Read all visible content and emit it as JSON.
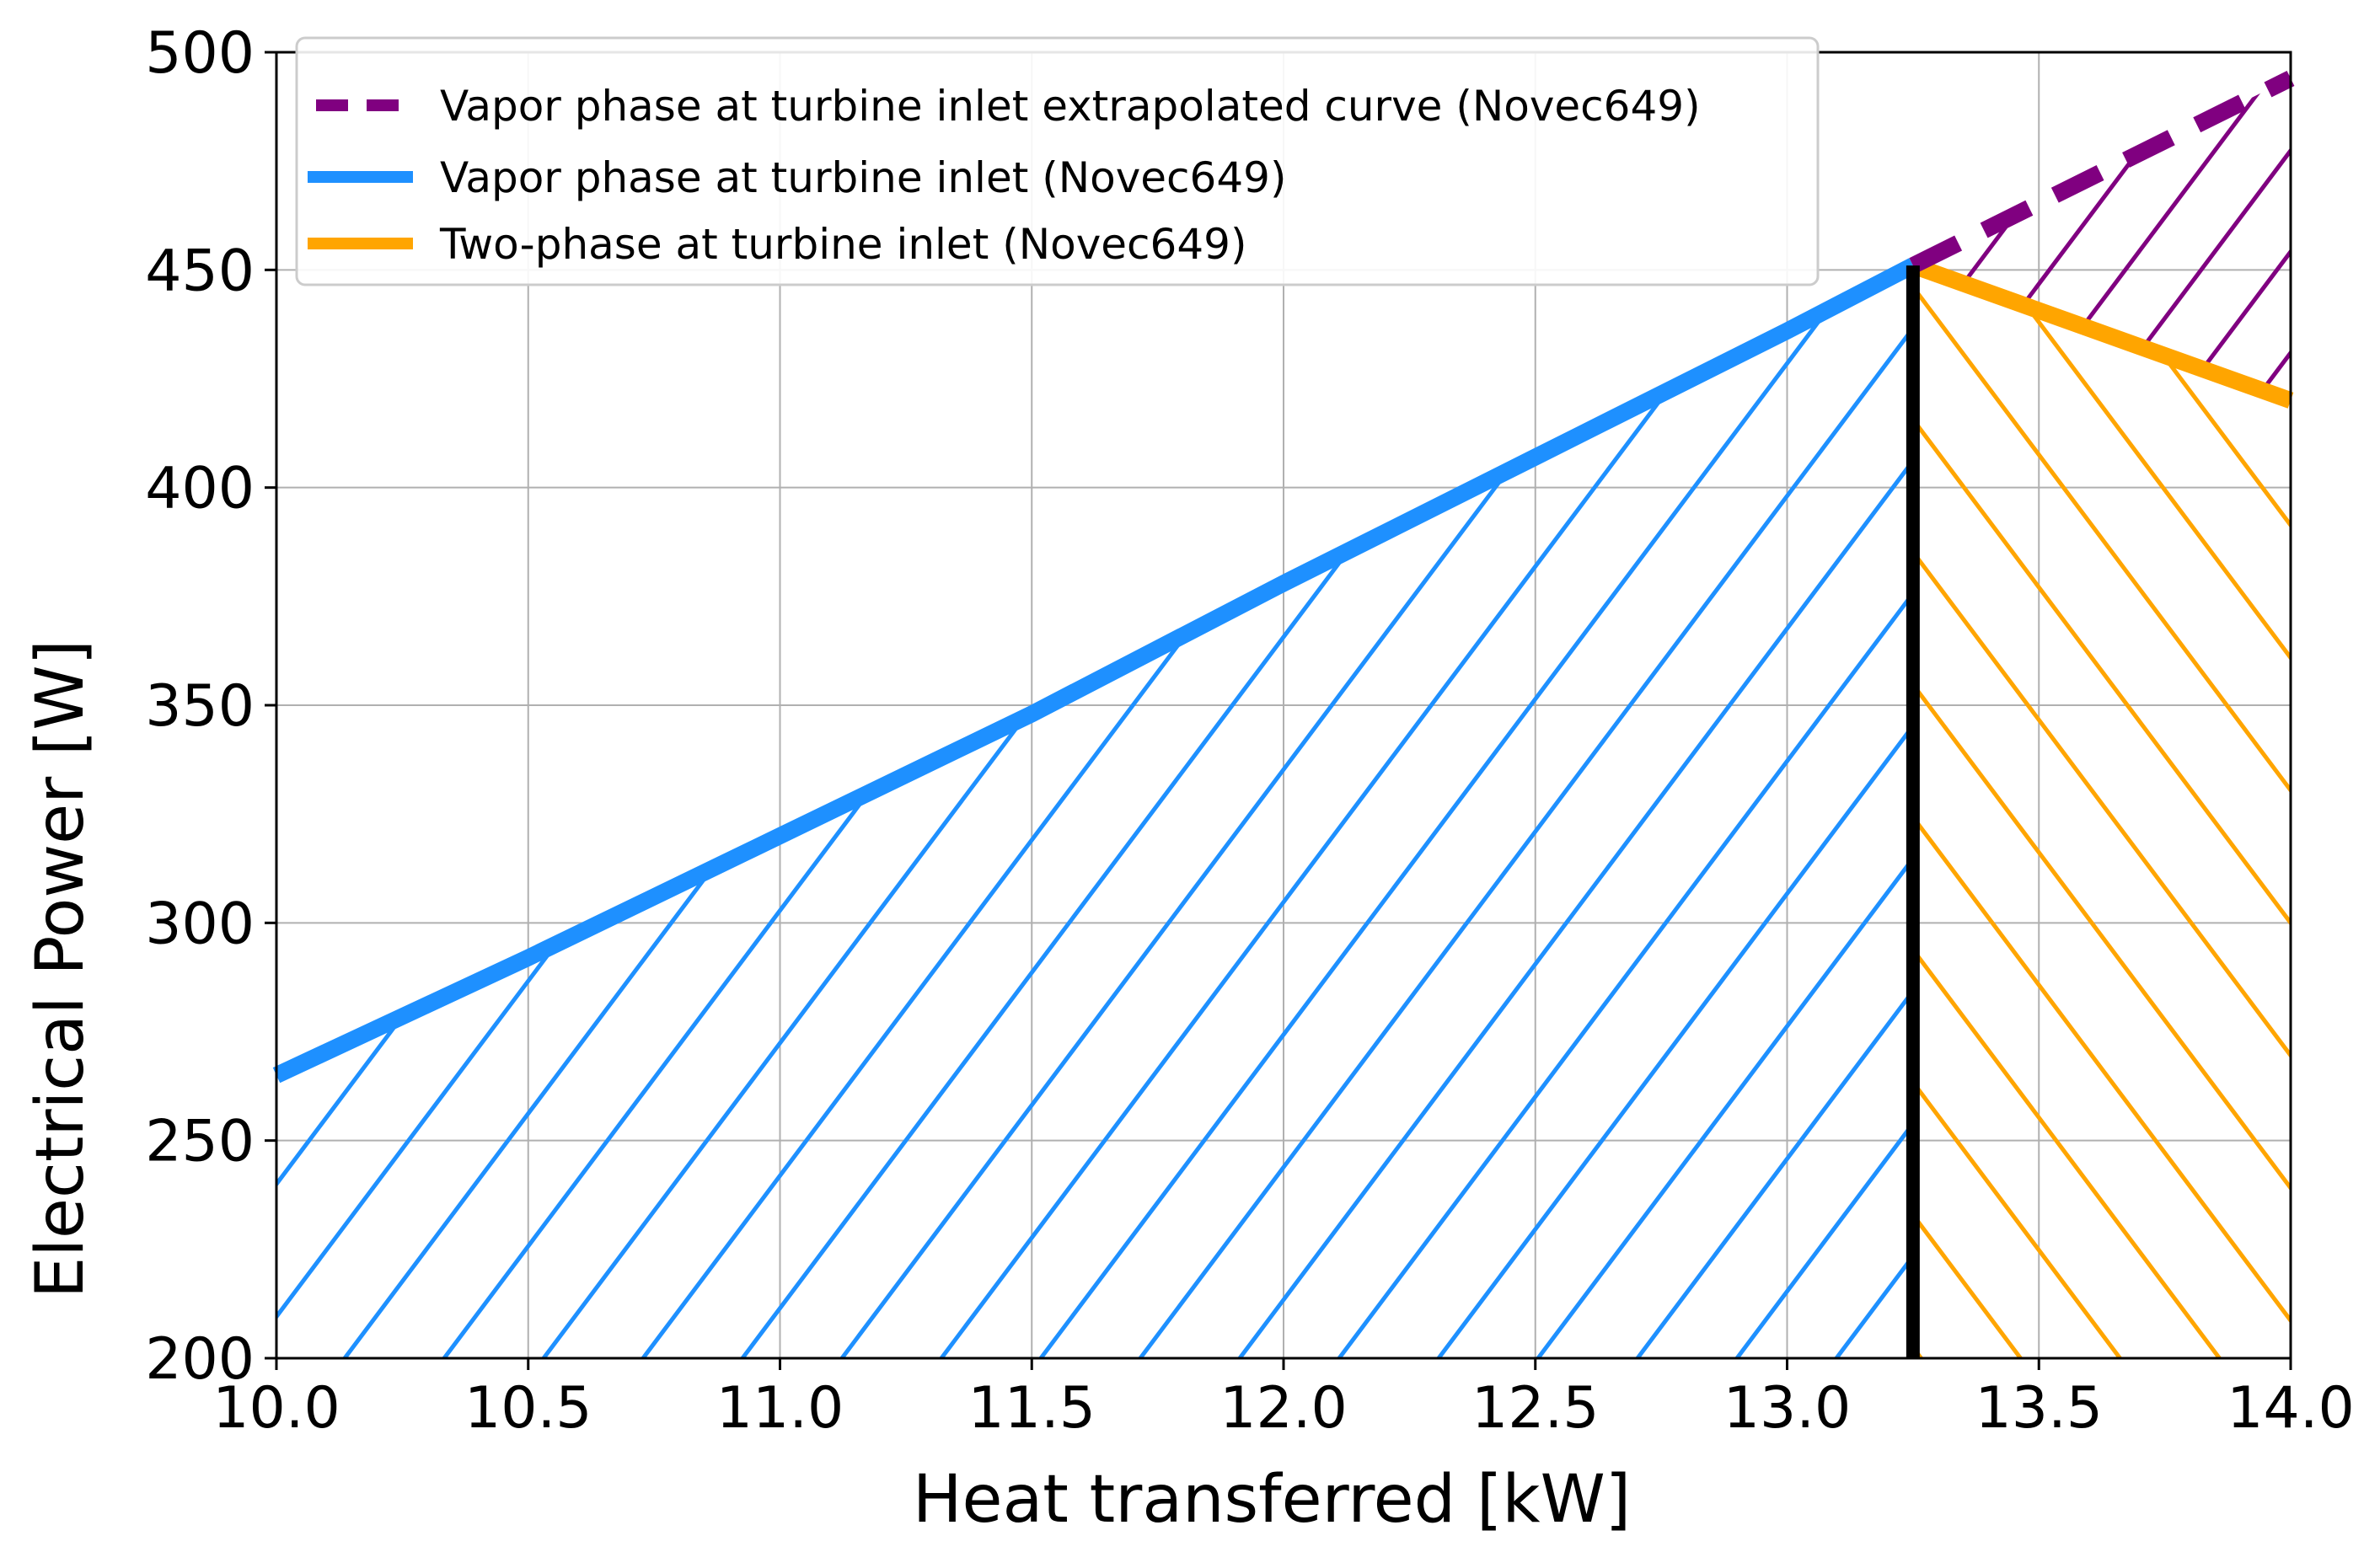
{
  "chart_data": {
    "type": "line",
    "xlabel": "Heat transferred [kW]",
    "ylabel": "Electrical Power [W]",
    "xlim": [
      10.0,
      14.0
    ],
    "ylim": [
      200,
      500
    ],
    "xticks": [
      "10.0",
      "10.5",
      "11.0",
      "11.5",
      "12.0",
      "12.5",
      "13.0",
      "13.5",
      "14.0"
    ],
    "yticks": [
      "200",
      "250",
      "300",
      "350",
      "400",
      "450",
      "500"
    ],
    "grid": true,
    "legend_position": "top-left",
    "series": [
      {
        "name": "Vapor phase at turbine inlet extrapolated curve (Novec649)",
        "color": "#800080",
        "style": "dashed",
        "x": [
          13.25,
          14.0
        ],
        "y": [
          451,
          494
        ]
      },
      {
        "name": "Vapor phase at turbine inlet (Novec649)",
        "color": "#1E90FF",
        "style": "solid",
        "x": [
          10.0,
          10.5,
          11.0,
          11.5,
          12.0,
          12.5,
          13.0,
          13.25
        ],
        "y": [
          265,
          292,
          320,
          348,
          378,
          407,
          436,
          451
        ]
      },
      {
        "name": "Two-phase at turbine inlet (Novec649)",
        "color": "#FFA500",
        "style": "solid",
        "x": [
          13.25,
          14.0
        ],
        "y": [
          451,
          420
        ]
      }
    ],
    "vertical_line": {
      "x": 13.25,
      "color": "#000000"
    },
    "hatched_regions": [
      {
        "name": "vapor-phase-region",
        "color": "#1E90FF",
        "direction": "/"
      },
      {
        "name": "two-phase-region",
        "color": "#FFA500",
        "direction": "\\"
      },
      {
        "name": "extrapolated-gap-region",
        "color": "#800080",
        "direction": "/"
      }
    ]
  }
}
